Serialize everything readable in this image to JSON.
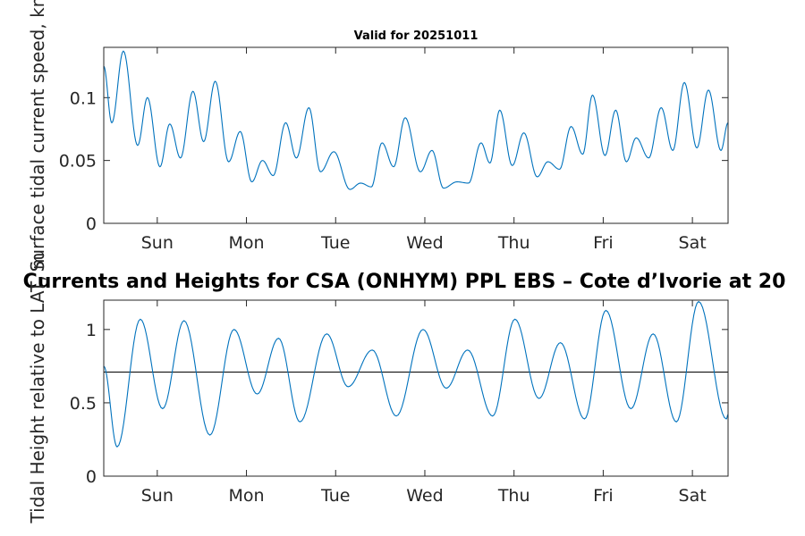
{
  "chart_data": [
    {
      "type": "line",
      "title": "Valid for 20251011",
      "xlabel": "",
      "ylabel": "Surface tidal current speed, kn",
      "ylim": [
        0,
        0.14
      ],
      "yticks": [
        0,
        0.05,
        0.1
      ],
      "ytick_labels": [
        "0",
        "0.05",
        "0.1"
      ],
      "xlim": [
        0,
        7
      ],
      "xticks": [
        0.6,
        1.6,
        2.6,
        3.6,
        4.6,
        5.6,
        6.6
      ],
      "xtick_labels": [
        "Sun",
        "Mon",
        "Tue",
        "Wed",
        "Thu",
        "Fri",
        "Sat"
      ],
      "color": "#0072BD",
      "extrema_x": [
        0,
        0.09,
        0.22,
        0.38,
        0.49,
        0.63,
        0.74,
        0.86,
        1.0,
        1.12,
        1.25,
        1.4,
        1.53,
        1.66,
        1.78,
        1.9,
        2.04,
        2.16,
        2.3,
        2.43,
        2.58,
        2.76,
        2.88,
        3.0,
        3.12,
        3.25,
        3.38,
        3.55,
        3.68,
        3.81,
        3.96,
        4.09,
        4.23,
        4.33,
        4.44,
        4.58,
        4.71,
        4.86,
        4.98,
        5.11,
        5.24,
        5.37,
        5.48,
        5.62,
        5.74,
        5.86,
        5.97,
        6.11,
        6.25,
        6.38,
        6.51,
        6.65,
        6.78,
        6.92,
        7.0
      ],
      "extrema_y": [
        0.125,
        0.08,
        0.137,
        0.062,
        0.1,
        0.045,
        0.079,
        0.052,
        0.105,
        0.065,
        0.113,
        0.049,
        0.073,
        0.033,
        0.05,
        0.038,
        0.08,
        0.052,
        0.092,
        0.041,
        0.057,
        0.027,
        0.032,
        0.029,
        0.064,
        0.045,
        0.084,
        0.041,
        0.058,
        0.028,
        0.033,
        0.032,
        0.064,
        0.048,
        0.09,
        0.046,
        0.072,
        0.037,
        0.049,
        0.043,
        0.077,
        0.055,
        0.102,
        0.054,
        0.09,
        0.049,
        0.068,
        0.052,
        0.092,
        0.058,
        0.112,
        0.06,
        0.106,
        0.058,
        0.08
      ]
    },
    {
      "type": "line",
      "title": "Currents and Heights for CSA (ONHYM) PPL EBS  – Cote d’Ivorie at 20",
      "xlabel": "",
      "ylabel": "Tidal Height relative to LAT, m",
      "ylim": [
        0,
        1.2
      ],
      "yticks": [
        0,
        0.5,
        1
      ],
      "ytick_labels": [
        "0",
        "0.5",
        "1"
      ],
      "xlim": [
        0,
        7
      ],
      "xticks": [
        0.6,
        1.6,
        2.6,
        3.6,
        4.6,
        5.6,
        6.6
      ],
      "xtick_labels": [
        "Sun",
        "Mon",
        "Tue",
        "Wed",
        "Thu",
        "Fri",
        "Sat"
      ],
      "color": "#0072BD",
      "reference_line": 0.71,
      "extrema_x": [
        0,
        0.15,
        0.41,
        0.66,
        0.9,
        1.19,
        1.46,
        1.72,
        1.96,
        2.2,
        2.5,
        2.74,
        3.01,
        3.28,
        3.58,
        3.84,
        4.08,
        4.36,
        4.61,
        4.88,
        5.12,
        5.39,
        5.63,
        5.91,
        6.16,
        6.42,
        6.67,
        6.98,
        7.0
      ],
      "extrema_y": [
        0.75,
        0.2,
        1.07,
        0.46,
        1.06,
        0.28,
        1.0,
        0.56,
        0.94,
        0.37,
        0.97,
        0.61,
        0.86,
        0.41,
        1.0,
        0.6,
        0.86,
        0.41,
        1.07,
        0.53,
        0.91,
        0.39,
        1.13,
        0.46,
        0.97,
        0.37,
        1.19,
        0.39,
        0.42
      ]
    }
  ]
}
